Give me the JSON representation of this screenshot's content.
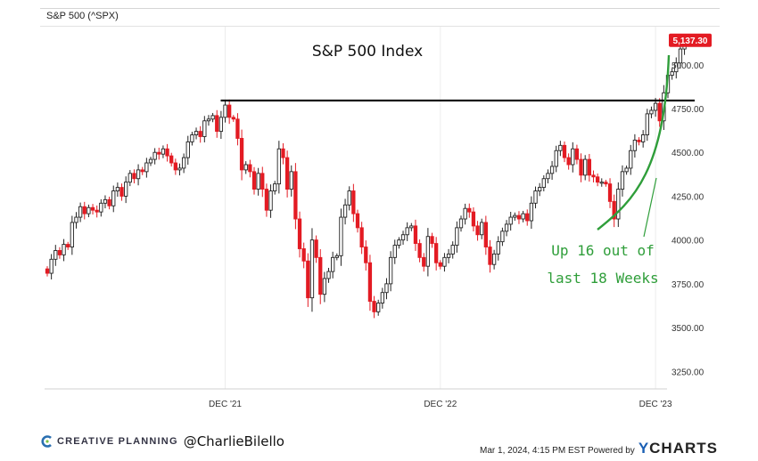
{
  "header": {
    "ticker": "S&P 500 (^SPX)"
  },
  "footer": {
    "company": "CREATIVE PLANNING",
    "handle": "@CharlieBilello",
    "timestamp": "Mar 1, 2024, 4:15 PM EST Powered by",
    "brand_y": "Y",
    "brand_rest": "CHARTS"
  },
  "colors": {
    "up": "#222222",
    "down": "#e31b23",
    "resistance": "#000000",
    "arrow": "#2f9e3a",
    "last_badge": "#e31b23",
    "annotation": "#2f9e3a"
  },
  "chart_data": {
    "type": "candlestick",
    "title": "S&P 500 Index",
    "ylim": [
      3150,
      5200
    ],
    "y_ticks": [
      3250,
      3500,
      3750,
      4000,
      4250,
      4500,
      4750,
      5000
    ],
    "y_tick_labels": [
      "3250.00",
      "3500.00",
      "3750.00",
      "4000.00",
      "4250.00",
      "4500.00",
      "4750.00",
      "5000.00"
    ],
    "x_tick_labels": [
      "DEC '21",
      "DEC '22",
      "DEC '23"
    ],
    "x_tick_weeks": [
      43,
      95,
      147
    ],
    "last_value_label": "5,137.30",
    "last_value": 5137.3,
    "resistance_level": 4796,
    "resistance_span_weeks": [
      43,
      150
    ],
    "annotation": [
      "Up 16 out of",
      "last 18 Weeks"
    ],
    "closes": [
      3810,
      3890,
      3940,
      3915,
      3975,
      3960,
      4100,
      4130,
      4190,
      4150,
      4185,
      4170,
      4160,
      4210,
      4230,
      4195,
      4280,
      4300,
      4250,
      4330,
      4380,
      4350,
      4400,
      4390,
      4440,
      4460,
      4500,
      4490,
      4520,
      4480,
      4440,
      4400,
      4410,
      4470,
      4560,
      4600,
      4620,
      4590,
      4680,
      4690,
      4710,
      4620,
      4700,
      4770,
      4700,
      4690,
      4580,
      4400,
      4430,
      4390,
      4290,
      4380,
      4290,
      4170,
      4280,
      4320,
      4520,
      4470,
      4290,
      4390,
      4120,
      3950,
      3880,
      3670,
      4000,
      3900,
      3690,
      3780,
      3820,
      3900,
      3910,
      4130,
      4200,
      4280,
      4150,
      4070,
      3960,
      3870,
      3650,
      3590,
      3640,
      3700,
      3750,
      3900,
      3970,
      4000,
      4030,
      4070,
      4080,
      3980,
      3900,
      3850,
      4020,
      3980,
      3870,
      3850,
      3900,
      3920,
      3970,
      4070,
      4120,
      4180,
      4160,
      4080,
      4030,
      4100,
      3960,
      3860,
      3920,
      3990,
      4050,
      4090,
      4130,
      4140,
      4120,
      4150,
      4110,
      4210,
      4280,
      4300,
      4350,
      4380,
      4420,
      4510,
      4540,
      4470,
      4430,
      4520,
      4460,
      4370,
      4460,
      4370,
      4360,
      4330,
      4330,
      4320,
      4220,
      4120,
      4290,
      4390,
      4410,
      4510,
      4570,
      4560,
      4600,
      4720,
      4740,
      4780,
      4680,
      4840,
      4940,
      4960,
      5010,
      5090,
      5137
    ]
  }
}
